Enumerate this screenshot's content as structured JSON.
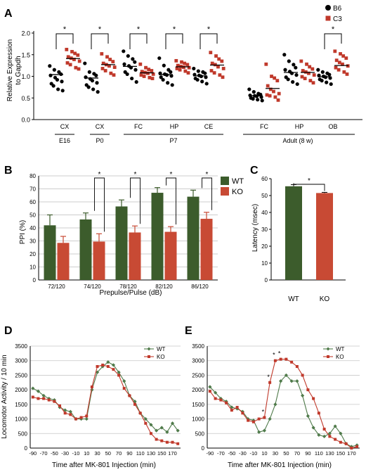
{
  "panels": {
    "A": {
      "label": "A",
      "ylabel_lines": [
        "Relative Expression",
        "to Gapdh"
      ],
      "yticks": [
        "0.0",
        "0.5",
        "1.0",
        "1.5",
        "2.0"
      ],
      "legend": [
        {
          "name": "B6",
          "marker": "circle"
        },
        {
          "name": "C3",
          "marker": "square"
        }
      ],
      "group_labels": [
        "CX",
        "CX",
        "FC",
        "HP",
        "CE",
        "FC",
        "HP",
        "OB"
      ],
      "age_labels": [
        "E16",
        "P0",
        "P7",
        "Adult (8 w)"
      ],
      "sig_mark": "*"
    },
    "B": {
      "label": "B",
      "ylabel": "PPI (%)",
      "xlabel": "Prepulse/Pulse (dB)",
      "yticks": [
        "0",
        "10",
        "20",
        "30",
        "40",
        "50",
        "60",
        "70",
        "80"
      ],
      "legend": [
        "WT",
        "KO"
      ],
      "sig_mark": "*"
    },
    "C": {
      "label": "C",
      "ylabel": "Latency (msec)",
      "yticks": [
        "0",
        "10",
        "20",
        "30",
        "40",
        "50",
        "60"
      ],
      "sig_mark": "*"
    },
    "D": {
      "label": "D",
      "ylabel": "Locomotor Activity / 10 min",
      "xlabel": "Time after MK-801 Injection (min)",
      "yticks": [
        "0",
        "500",
        "1000",
        "1500",
        "2000",
        "2500",
        "3000",
        "3500"
      ],
      "xticks": [
        "-90",
        "-70",
        "-50",
        "-30",
        "-10",
        "10",
        "30",
        "50",
        "70",
        "90",
        "110",
        "130",
        "150",
        "170"
      ],
      "legend": [
        "WT",
        "KO"
      ]
    },
    "E": {
      "label": "E",
      "yticks": [
        "0",
        "500",
        "1000",
        "1500",
        "2000",
        "2500",
        "3000",
        "3500"
      ],
      "xlabel": "Time after MK-801 Injection (min)",
      "xticks": [
        "-90",
        "-70",
        "-50",
        "-30",
        "-10",
        "10",
        "30",
        "50",
        "70",
        "90",
        "110",
        "130",
        "150",
        "170"
      ],
      "legend": [
        "WT",
        "KO"
      ],
      "sig_mark": "*"
    }
  },
  "colors": {
    "wt": "#3c5c2c",
    "ko": "#c84a34",
    "wt_line": "#4f7a4a",
    "ko_line": "#c0392b"
  },
  "chart_data": [
    {
      "id": "A",
      "type": "scatter",
      "ylim": [
        0,
        2
      ],
      "groups": [
        {
          "region": "CX",
          "age": "E16",
          "sig": true,
          "B6": [
            1.24,
            1.15,
            1.1,
            1.05,
            1.02,
            0.97,
            0.92,
            0.88,
            0.83,
            0.78,
            0.7,
            0.67
          ],
          "B6_median": 1.04,
          "C3": [
            1.62,
            1.57,
            1.53,
            1.49,
            1.45,
            1.42,
            1.39,
            1.35,
            1.31,
            1.27,
            1.2,
            1.17
          ],
          "C3_median": 1.41
        },
        {
          "region": "CX",
          "age": "P0",
          "sig": true,
          "B6": [
            1.3,
            1.1,
            1.06,
            1.02,
            0.98,
            0.94,
            0.9,
            0.85,
            0.8,
            0.75,
            0.7,
            0.64
          ],
          "B6_median": 0.96,
          "C3": [
            1.52,
            1.45,
            1.39,
            1.34,
            1.3,
            1.27,
            1.24,
            1.21,
            1.18,
            1.13,
            1.07,
            1.03
          ],
          "C3_median": 1.27
        },
        {
          "region": "FC",
          "age": "P7",
          "sig": true,
          "B6": [
            1.58,
            1.47,
            1.4,
            1.33,
            1.28,
            1.24,
            1.2,
            1.15,
            1.1,
            1.05,
            0.95,
            0.87
          ],
          "B6_median": 1.23,
          "C3": [
            1.28,
            1.2,
            1.16,
            1.13,
            1.11,
            1.09,
            1.07,
            1.05,
            1.03,
            1.0,
            0.97,
            0.95
          ],
          "C3_median": 1.08
        },
        {
          "region": "HP",
          "age": "P7",
          "sig": true,
          "B6": [
            1.42,
            1.25,
            1.15,
            1.1,
            1.07,
            1.05,
            1.03,
            1.01,
            0.98,
            0.92,
            0.85,
            0.8
          ],
          "B6_median": 1.04,
          "C3": [
            1.36,
            1.33,
            1.3,
            1.27,
            1.25,
            1.23,
            1.21,
            1.2,
            1.18,
            1.15,
            1.12,
            1.08
          ],
          "C3_median": 1.22
        },
        {
          "region": "CE",
          "age": "P7",
          "sig": true,
          "B6": [
            1.18,
            1.12,
            1.1,
            1.07,
            1.04,
            1.02,
            1.0,
            0.98,
            0.95,
            0.92,
            0.88,
            0.83
          ],
          "B6_median": 1.01,
          "C3": [
            1.55,
            1.47,
            1.4,
            1.35,
            1.3,
            1.27,
            1.22,
            1.18,
            1.13,
            1.08,
            1.03,
            0.98
          ],
          "C3_median": 1.26
        },
        {
          "region": "FC",
          "age": "Adult (8 w)",
          "sig": false,
          "B6": [
            0.7,
            0.64,
            0.6,
            0.58,
            0.56,
            0.55,
            0.54,
            0.52,
            0.5,
            0.48,
            0.46,
            0.44
          ],
          "B6_median": 0.55,
          "C3": [
            1.28,
            1.0,
            0.96,
            0.9,
            0.78,
            0.7,
            0.65,
            0.6,
            0.57,
            0.55,
            0.52,
            0.45
          ],
          "C3_median": 0.72
        },
        {
          "region": "HP",
          "age": "Adult (8 w)",
          "sig": false,
          "B6": [
            1.5,
            1.35,
            1.27,
            1.2,
            1.15,
            1.11,
            1.07,
            1.03,
            0.98,
            0.93,
            0.87,
            0.82
          ],
          "B6_median": 1.09,
          "C3": [
            1.35,
            1.28,
            1.22,
            1.17,
            1.13,
            1.1,
            1.07,
            1.03,
            0.99,
            0.95,
            0.9,
            0.85
          ],
          "C3_median": 1.09
        },
        {
          "region": "OB",
          "age": "Adult (8 w)",
          "sig": true,
          "B6": [
            1.15,
            1.1,
            1.07,
            1.04,
            1.02,
            1.0,
            0.98,
            0.96,
            0.93,
            0.9,
            0.86,
            0.82
          ],
          "B6_median": 0.99,
          "C3": [
            1.58,
            1.52,
            1.47,
            1.42,
            1.37,
            1.32,
            1.28,
            1.24,
            1.2,
            1.15,
            1.1,
            1.05
          ],
          "C3_median": 1.25
        }
      ]
    },
    {
      "id": "B",
      "type": "bar",
      "categories": [
        "72/120",
        "74/120",
        "78/120",
        "82/120",
        "86/120"
      ],
      "series": [
        {
          "name": "WT",
          "values": [
            42,
            46.5,
            56.5,
            67,
            64
          ],
          "errors": [
            8,
            5,
            5,
            4,
            5
          ]
        },
        {
          "name": "KO",
          "values": [
            28.5,
            29.5,
            36.5,
            37,
            47
          ],
          "errors": [
            5,
            6,
            5,
            4,
            5
          ]
        }
      ],
      "significant": [
        false,
        true,
        true,
        true,
        true
      ],
      "ylim": [
        0,
        80
      ]
    },
    {
      "id": "C",
      "type": "bar",
      "categories": [
        "WT",
        "KO"
      ],
      "values": [
        55.5,
        51.5
      ],
      "errors": [
        1,
        0.4
      ],
      "ylim": [
        0,
        60
      ]
    },
    {
      "id": "D",
      "type": "line",
      "x": [
        -90,
        -80,
        -70,
        -60,
        -50,
        -40,
        -30,
        -20,
        -10,
        0,
        10,
        20,
        30,
        40,
        50,
        60,
        70,
        80,
        90,
        100,
        110,
        120,
        130,
        140,
        150,
        160,
        170,
        180
      ],
      "series": [
        {
          "name": "WT",
          "values": [
            2050,
            1950,
            1800,
            1700,
            1650,
            1400,
            1300,
            1250,
            1000,
            1000,
            1000,
            2000,
            2600,
            2800,
            2950,
            2850,
            2600,
            2300,
            1800,
            1600,
            1200,
            1000,
            800,
            600,
            700,
            550,
            850,
            600
          ]
        },
        {
          "name": "KO",
          "values": [
            1750,
            1700,
            1700,
            1650,
            1600,
            1450,
            1200,
            1150,
            1000,
            1050,
            1100,
            2100,
            2800,
            2850,
            2800,
            2700,
            2500,
            2050,
            1800,
            1500,
            1200,
            850,
            500,
            300,
            250,
            200,
            200,
            150
          ]
        }
      ],
      "ylim": [
        0,
        3500
      ],
      "xlim": [
        -95,
        185
      ]
    },
    {
      "id": "E",
      "type": "line",
      "x": [
        -90,
        -80,
        -70,
        -60,
        -50,
        -40,
        -30,
        -20,
        -10,
        0,
        10,
        20,
        30,
        40,
        50,
        60,
        70,
        80,
        90,
        100,
        110,
        120,
        130,
        140,
        150,
        160,
        170,
        180
      ],
      "series": [
        {
          "name": "WT",
          "values": [
            2100,
            1900,
            1700,
            1600,
            1400,
            1350,
            1250,
            1000,
            950,
            550,
            600,
            1000,
            1500,
            2300,
            2500,
            2300,
            2300,
            1800,
            1100,
            700,
            450,
            400,
            500,
            750,
            500,
            150,
            50,
            100
          ]
        },
        {
          "name": "KO",
          "values": [
            1950,
            1700,
            1650,
            1550,
            1300,
            1400,
            1200,
            950,
            900,
            1000,
            1050,
            2250,
            3000,
            3050,
            3050,
            2950,
            2800,
            2500,
            2000,
            1700,
            1200,
            650,
            400,
            300,
            200,
            150,
            0,
            50
          ]
        }
      ],
      "significant_x": [
        10,
        20,
        30,
        40
      ],
      "ylim": [
        0,
        3500
      ],
      "xlim": [
        -95,
        185
      ]
    }
  ]
}
